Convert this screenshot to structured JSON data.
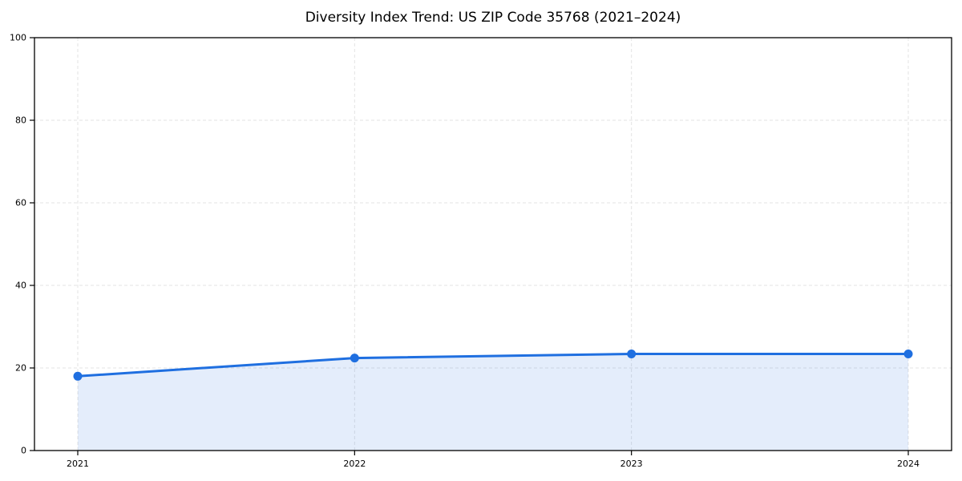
{
  "title": "Diversity Index Trend: US ZIP Code 35768 (2021–2024)",
  "chart_data": {
    "type": "line",
    "area_fill": true,
    "title": "Diversity Index Trend: US ZIP Code 35768 (2021–2024)",
    "x": [
      2021,
      2022,
      2023,
      2024
    ],
    "xticks": [
      "2021",
      "2022",
      "2023",
      "2024"
    ],
    "series": [
      {
        "name": "Diversity Index",
        "values": [
          18.0,
          22.4,
          23.4,
          23.4
        ]
      }
    ],
    "xlabel": "",
    "ylabel": "",
    "ylim": [
      0,
      100
    ],
    "yticks": [
      0,
      20,
      40,
      60,
      80,
      100
    ],
    "grid": true,
    "grid_style": "dashed",
    "legend": "none",
    "marker": "circle"
  },
  "colors": {
    "line": "#1f6fe0",
    "marker": "#1f6fe0",
    "fill": "#1f6fe0",
    "fill_opacity": 0.12,
    "grid": "#e3e3e3",
    "spine": "#000000",
    "tick": "#000000",
    "text": "#000000",
    "background": "#ffffff"
  }
}
